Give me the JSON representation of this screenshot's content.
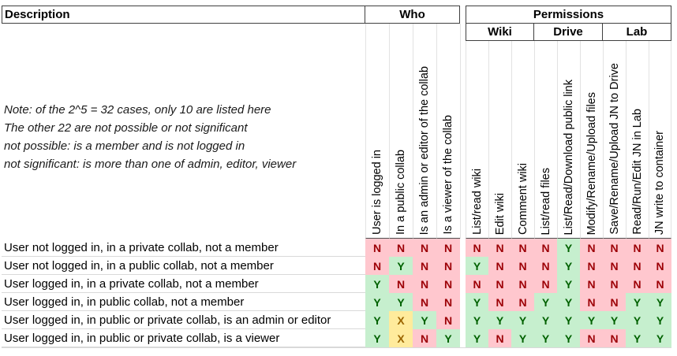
{
  "table": {
    "corner_header": "Description",
    "note_lines": [
      "Note: of the 2^5 = 32 cases, only 10 are listed here",
      "The other 22 are not possible or not significant",
      "not possible: is a member and is not logged in",
      "not significant: is more than one of admin, editor, viewer"
    ],
    "groups": {
      "who": {
        "label": "Who",
        "columns": [
          "User is logged in",
          "In a public collab",
          "Is an admin or editor of the collab",
          "Is a viewer of the collab"
        ]
      },
      "permissions": {
        "label": "Permissions",
        "subgroups": [
          {
            "label": "Wiki",
            "columns": [
              "List/read wiki",
              "Edit wiki",
              "Comment wiki"
            ]
          },
          {
            "label": "Drive",
            "columns": [
              "List/read files",
              "List/Read/Download public link",
              "Modify/Rename/Upload files"
            ]
          },
          {
            "label": "Lab",
            "columns": [
              "Save/Rename/Upload JN to Drive",
              "Read/Run/Edit JN in Lab",
              "JN write to container"
            ]
          }
        ]
      }
    },
    "rows": [
      {
        "description": "User not logged in, in a private collab, not a member",
        "who": [
          "N",
          "N",
          "N",
          "N"
        ],
        "permissions": [
          "N",
          "N",
          "N",
          "N",
          "Y",
          "N",
          "N",
          "N",
          "N"
        ]
      },
      {
        "description": "User not logged in, in a public collab, not a member",
        "who": [
          "N",
          "Y",
          "N",
          "N"
        ],
        "permissions": [
          "Y",
          "N",
          "N",
          "N",
          "Y",
          "N",
          "N",
          "N",
          "N"
        ]
      },
      {
        "description": "User logged in, in a private collab, not a member",
        "who": [
          "Y",
          "N",
          "N",
          "N"
        ],
        "permissions": [
          "N",
          "N",
          "N",
          "N",
          "Y",
          "N",
          "N",
          "N",
          "N"
        ]
      },
      {
        "description": "User logged in, in public collab, not a member",
        "who": [
          "Y",
          "Y",
          "N",
          "N"
        ],
        "permissions": [
          "Y",
          "N",
          "N",
          "Y",
          "Y",
          "N",
          "N",
          "Y",
          "Y"
        ]
      },
      {
        "description": "User logged in, in public or private collab, is an admin or editor",
        "who": [
          "Y",
          "X",
          "Y",
          "N"
        ],
        "permissions": [
          "Y",
          "Y",
          "Y",
          "Y",
          "Y",
          "Y",
          "Y",
          "Y",
          "Y"
        ]
      },
      {
        "description": "User logged in, in public or private collab, is a viewer",
        "who": [
          "Y",
          "X",
          "N",
          "Y"
        ],
        "permissions": [
          "Y",
          "N",
          "Y",
          "Y",
          "Y",
          "N",
          "N",
          "Y",
          "Y"
        ]
      }
    ],
    "value_styles": {
      "Y": {
        "fill": "#C6EFCE",
        "text": "#006100"
      },
      "N": {
        "fill": "#FFC7CE",
        "text": "#9C0006"
      },
      "X": {
        "fill": "#FFEB9C",
        "text": "#9C6500"
      }
    }
  }
}
